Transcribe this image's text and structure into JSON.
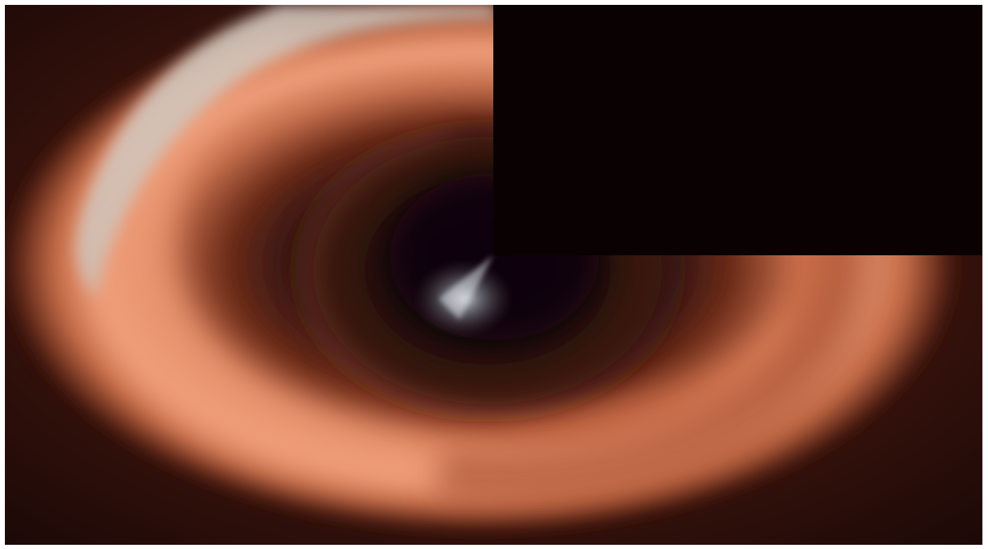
{
  "scene": {
    "subject": "swirl-icon",
    "colors": {
      "background_outer": "#1a0806",
      "background_mid": "#3a140d",
      "ring_outer_dark": "#5a2416",
      "ring_main": "#d98462",
      "ring_bright": "#f3a882",
      "ring_highlight": "#c9bdb3",
      "ring_inner": "#8a3a22",
      "eye_dark": "#241010",
      "eye_core": "#0b0506",
      "cut_quadrant": "#030102",
      "core_glow": "#cfd3d8"
    }
  }
}
